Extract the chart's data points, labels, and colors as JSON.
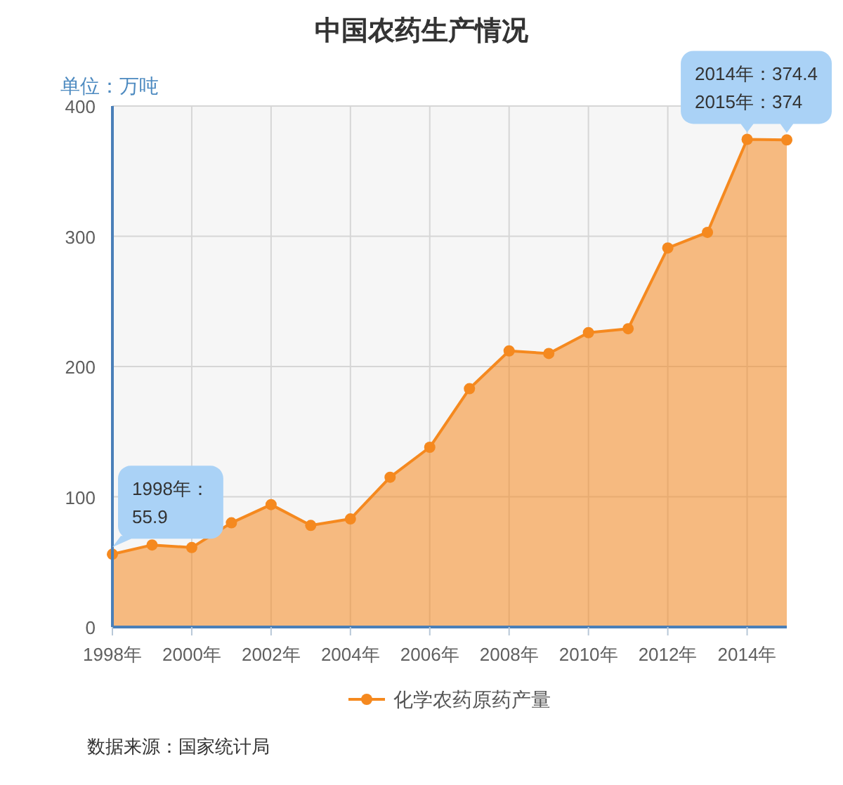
{
  "chart_data": {
    "type": "area",
    "title": "中国农药生产情况",
    "ylabel": "单位：万吨",
    "x": [
      1998,
      1999,
      2000,
      2001,
      2002,
      2003,
      2004,
      2005,
      2006,
      2007,
      2008,
      2009,
      2010,
      2011,
      2012,
      2013,
      2014,
      2015
    ],
    "series": [
      {
        "name": "化学农药原药产量",
        "color": "#f5891f",
        "values": [
          55.9,
          63,
          61,
          80,
          94,
          78,
          83,
          115,
          138,
          183,
          212,
          210,
          226,
          229,
          291,
          303,
          374.4,
          374
        ]
      }
    ],
    "xlim": [
      1998,
      2015
    ],
    "xticks": [
      {
        "value": 1998,
        "label": "1998年"
      },
      {
        "value": 2000,
        "label": "2000年"
      },
      {
        "value": 2002,
        "label": "2002年"
      },
      {
        "value": 2004,
        "label": "2004年"
      },
      {
        "value": 2006,
        "label": "2006年"
      },
      {
        "value": 2008,
        "label": "2008年"
      },
      {
        "value": 2010,
        "label": "2010年"
      },
      {
        "value": 2012,
        "label": "2012年"
      },
      {
        "value": 2014,
        "label": "2014年"
      }
    ],
    "ylim": [
      0,
      400
    ],
    "yticks": [
      0,
      100,
      200,
      300,
      400
    ],
    "grid": true,
    "legend": "bottom",
    "marker": "circle",
    "annotations": [
      {
        "text": "2014年：374.4",
        "x": 2014,
        "y": 374.4
      },
      {
        "text": "2015年：374",
        "x": 2015,
        "y": 374
      },
      {
        "text": "1998年：55.9",
        "x": 1998,
        "y": 55.9
      },
      "数据来源：国家统计局"
    ]
  }
}
